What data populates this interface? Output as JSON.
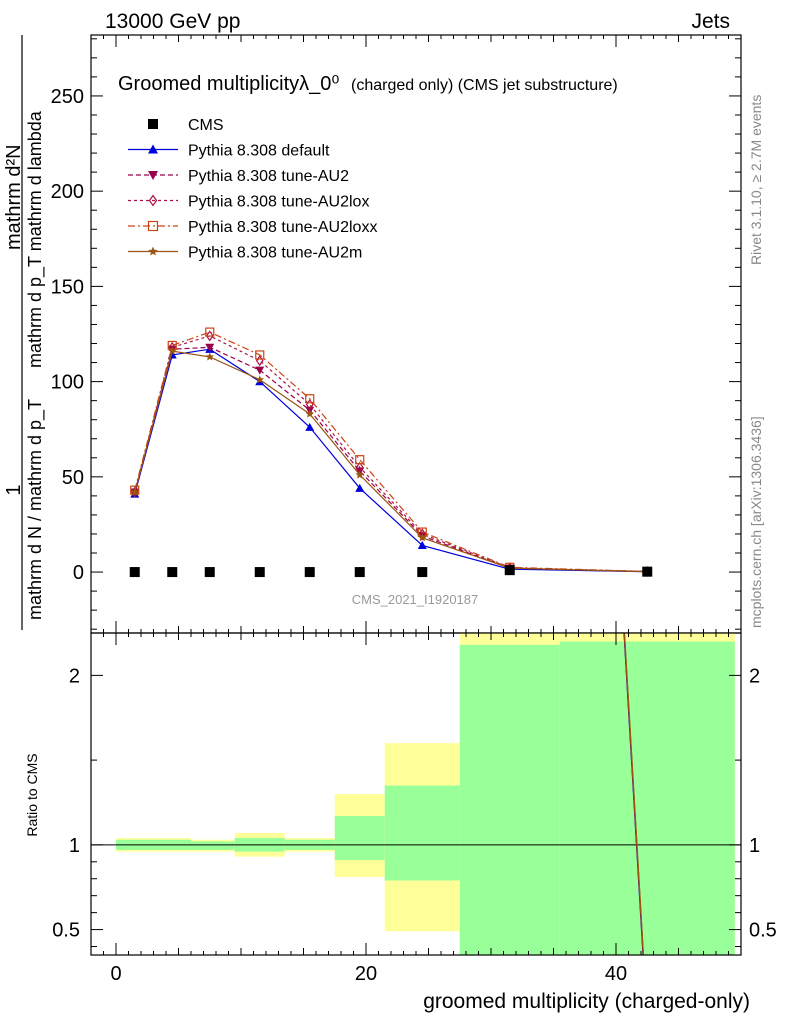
{
  "header": {
    "left": "13000 GeV pp",
    "right": "Jets"
  },
  "side_labels": {
    "rivet": "Rivet 3.1.10, ≥ 2.7M events",
    "mcplots": "mcplots.cern.ch [arXiv:1306.3436]"
  },
  "chart_data": {
    "type": "line",
    "title": "Groomed multiplicityλ_0⁰",
    "subtitle": "(charged only) (CMS jet substructure)",
    "watermark": "CMS_2021_I1920187",
    "xlabel": "groomed multiplicity (charged-only)",
    "ylabel": {
      "numerator": "1",
      "denominator": "mathrm d N / mathrm d p_T",
      "right_part": "mathrm d²N",
      "right_sub": "mathrm d p_T mathrm d lambda"
    },
    "ratio_ylabel": "Ratio to CMS",
    "xlim": [
      -2,
      50
    ],
    "ylim": [
      -32,
      282
    ],
    "ratio_ylim": [
      0.35,
      2.25
    ],
    "x_ticks": [
      0,
      20,
      40
    ],
    "y_ticks": [
      0,
      50,
      100,
      150,
      200,
      250
    ],
    "ratio_ticks": [
      0.5,
      1,
      2
    ],
    "legend_position": "top-left",
    "x": [
      1.5,
      4.5,
      7.5,
      11.5,
      15.5,
      19.5,
      24.5,
      31.5,
      42.5
    ],
    "series": [
      {
        "name": "CMS",
        "color": "#000000",
        "marker": "square",
        "values": [
          0,
          0,
          0,
          0,
          0,
          0,
          0,
          1,
          0.2
        ]
      },
      {
        "name": "Pythia 8.308 default",
        "color": "#0000dd",
        "marker": "triangle-up",
        "dash": "",
        "values": [
          41,
          114,
          117,
          100,
          76,
          44,
          14,
          1.5,
          0.2
        ]
      },
      {
        "name": "Pythia 8.308 tune-AU2",
        "color": "#99004d",
        "marker": "triangle-down",
        "dash": "5,3",
        "values": [
          42,
          117,
          118,
          106,
          85,
          53,
          19,
          2,
          0.3
        ]
      },
      {
        "name": "Pythia 8.308 tune-AU2lox",
        "color": "#aa1144",
        "marker": "diamond",
        "dash": "3,3",
        "values": [
          42,
          118,
          124,
          111,
          88,
          55,
          20,
          2.2,
          0.3
        ]
      },
      {
        "name": "Pythia 8.308 tune-AU2loxx",
        "color": "#cc4411",
        "marker": "square-open",
        "dash": "7,3,2,3",
        "values": [
          43,
          119,
          126,
          114,
          91,
          59,
          21,
          2.5,
          0.3
        ]
      },
      {
        "name": "Pythia 8.308 tune-AU2m",
        "color": "#995511",
        "marker": "star",
        "dash": "",
        "values": [
          42,
          116,
          113,
          101,
          83,
          51,
          18,
          2,
          0.2
        ]
      }
    ],
    "ratio_bands": [
      {
        "x0": 0,
        "x1": 3,
        "yellow": [
          0.96,
          1.04
        ],
        "green": [
          0.97,
          1.03
        ]
      },
      {
        "x0": 3,
        "x1": 6,
        "yellow": [
          0.96,
          1.04
        ],
        "green": [
          0.97,
          1.03
        ]
      },
      {
        "x0": 6,
        "x1": 9.5,
        "yellow": [
          0.96,
          1.03
        ],
        "green": [
          0.97,
          1.02
        ]
      },
      {
        "x0": 9.5,
        "x1": 13.5,
        "yellow": [
          0.93,
          1.07
        ],
        "green": [
          0.96,
          1.04
        ]
      },
      {
        "x0": 13.5,
        "x1": 17.5,
        "yellow": [
          0.96,
          1.04
        ],
        "green": [
          0.97,
          1.03
        ]
      },
      {
        "x0": 17.5,
        "x1": 21.5,
        "yellow": [
          0.81,
          1.3
        ],
        "green": [
          0.91,
          1.17
        ]
      },
      {
        "x0": 21.5,
        "x1": 27.5,
        "yellow": [
          0.49,
          1.6
        ],
        "green": [
          0.79,
          1.35
        ]
      },
      {
        "x0": 27.5,
        "x1": 35.5,
        "yellow": [
          0.2,
          2.8
        ],
        "green": [
          0.2,
          2.18
        ]
      },
      {
        "x0": 35.5,
        "x1": 49.5,
        "yellow": [
          0.2,
          2.8
        ],
        "green": [
          0.2,
          2.2
        ]
      }
    ],
    "ratio_line": {
      "x": [
        40.6,
        42.2
      ],
      "y": [
        2.3,
        0.3
      ]
    }
  }
}
